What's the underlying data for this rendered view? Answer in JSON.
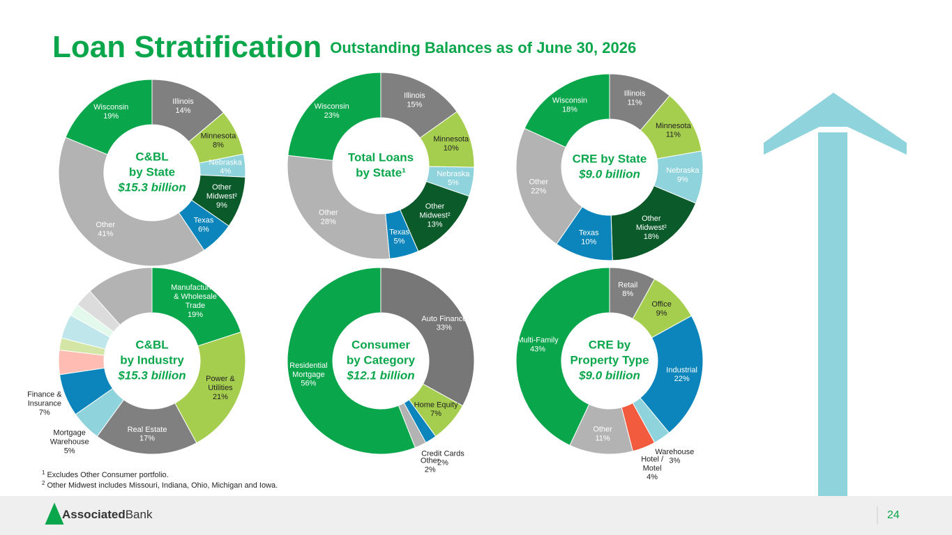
{
  "title": "Loan Stratification",
  "subtitle": "Outstanding Balances as of June 30, 2026",
  "footnotes": [
    {
      "mark": "1",
      "text": "Excludes Other Consumer portfolio."
    },
    {
      "mark": "2",
      "text": "Other Midwest includes Missouri, Indiana, Ohio, Michigan and Iowa."
    }
  ],
  "logo": {
    "bold": "Associated",
    "regular": "Bank"
  },
  "page_number": "24",
  "chart_data": [
    {
      "type": "donut",
      "title_lines": [
        "C&BL",
        "by State"
      ],
      "subtitle": "$15.3 billion",
      "categories": [
        "Illinois",
        "Minnesota",
        "Nebraska",
        "Other Midwest²",
        "Texas",
        "Other",
        "Wisconsin"
      ],
      "values": [
        14,
        8,
        4,
        9,
        6,
        41,
        19
      ],
      "value_labels": [
        "14%",
        "8%",
        "4%",
        "9%",
        "6%",
        "41%",
        "19%"
      ],
      "colors": [
        "#808080",
        "#a6ce4e",
        "#8fd3dc",
        "#0b5a2a",
        "#0b85bb",
        "#b3b3b3",
        "#0aa64b"
      ]
    },
    {
      "type": "donut",
      "title_lines": [
        "Total Loans",
        "by State¹"
      ],
      "categories": [
        "Illinois",
        "Minnesota",
        "Nebraska",
        "Other Midwest²",
        "Texas",
        "Other",
        "Wisconsin"
      ],
      "values": [
        15,
        10,
        5,
        13,
        5,
        28,
        23
      ],
      "value_labels": [
        "15%",
        "10%",
        "5%",
        "13%",
        "5%",
        "28%",
        "23%"
      ],
      "colors": [
        "#808080",
        "#a6ce4e",
        "#8fd3dc",
        "#0b5a2a",
        "#0b85bb",
        "#b3b3b3",
        "#0aa64b"
      ]
    },
    {
      "type": "donut",
      "title_lines": [
        "CRE by State"
      ],
      "subtitle": "$9.0 billion",
      "categories": [
        "Illinois",
        "Minnesota",
        "Nebraska",
        "Other Midwest²",
        "Texas",
        "Other",
        "Wisconsin"
      ],
      "values": [
        11,
        11,
        9,
        18,
        10,
        22,
        18
      ],
      "value_labels": [
        "11%",
        "11%",
        "9%",
        "18%",
        "10%",
        "22%",
        "18%"
      ],
      "colors": [
        "#808080",
        "#a6ce4e",
        "#8fd3dc",
        "#0b5a2a",
        "#0b85bb",
        "#b3b3b3",
        "#0aa64b"
      ]
    },
    {
      "type": "donut",
      "title_lines": [
        "C&BL",
        "by Industry"
      ],
      "subtitle": "$15.3 billion",
      "categories": [
        "Manufacturing & Wholesale Trade",
        "Power & Utilities",
        "Real Estate",
        "Mortgage Warehouse",
        "Finance & Insurance",
        null,
        null,
        null,
        null,
        null,
        null
      ],
      "values": [
        19,
        21,
        17,
        5,
        7,
        4,
        2,
        4,
        2,
        3,
        11
      ],
      "value_labels": [
        "19%",
        "21%",
        "17%",
        "5%",
        "7%",
        null,
        null,
        null,
        null,
        null,
        null
      ],
      "colors": [
        "#0aa64b",
        "#a6ce4e",
        "#808080",
        "#8fd3dc",
        "#0b85bb",
        "#ffbcb3",
        "#d4e6a5",
        "#bfe6ea",
        "#e3f9ec",
        "#dcdcdc",
        "#b3b3b3"
      ]
    },
    {
      "type": "donut",
      "title_lines": [
        "Consumer",
        "by Category"
      ],
      "subtitle": "$12.1 billion",
      "categories": [
        "Auto Finance",
        "Home Equity",
        "Credit Cards",
        "Other",
        "Residential Mortgage"
      ],
      "values": [
        33,
        7,
        2,
        2,
        56
      ],
      "value_labels": [
        "33%",
        "7%",
        "2%",
        "2%",
        "56%"
      ],
      "colors": [
        "#777777",
        "#a6ce4e",
        "#0b85bb",
        "#b3b3b3",
        "#0aa64b"
      ]
    },
    {
      "type": "donut",
      "title_lines": [
        "CRE by",
        "Property Type"
      ],
      "subtitle": "$9.0 billion",
      "categories": [
        "Retail",
        "Office",
        "Industrial",
        "Warehouse",
        "Hotel / Motel",
        "Other",
        "Multi-Family"
      ],
      "values": [
        8,
        9,
        22,
        3,
        4,
        11,
        43
      ],
      "value_labels": [
        "8%",
        "9%",
        "22%",
        "3%",
        "4%",
        "11%",
        "43%"
      ],
      "colors": [
        "#808080",
        "#a6ce4e",
        "#0b85bb",
        "#8fd3dc",
        "#f35b3f",
        "#b3b3b3",
        "#0aa64b"
      ]
    }
  ]
}
